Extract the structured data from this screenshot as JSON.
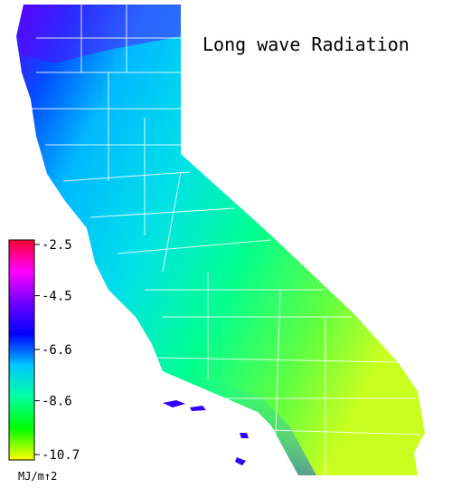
{
  "map": {
    "title": "Long wave Radiation",
    "colorbar": {
      "range": [
        -2.5,
        -10.7
      ],
      "ticks": [
        -2.5,
        -4.5,
        -6.6,
        -8.6,
        -10.7
      ],
      "colors": [
        "#ff0030",
        "#ff00ff",
        "#7000ff",
        "#0000ff",
        "#00c8ff",
        "#00ffa0",
        "#00ff00",
        "#ffff00"
      ],
      "unit": "MJ/m↑2"
    }
  }
}
